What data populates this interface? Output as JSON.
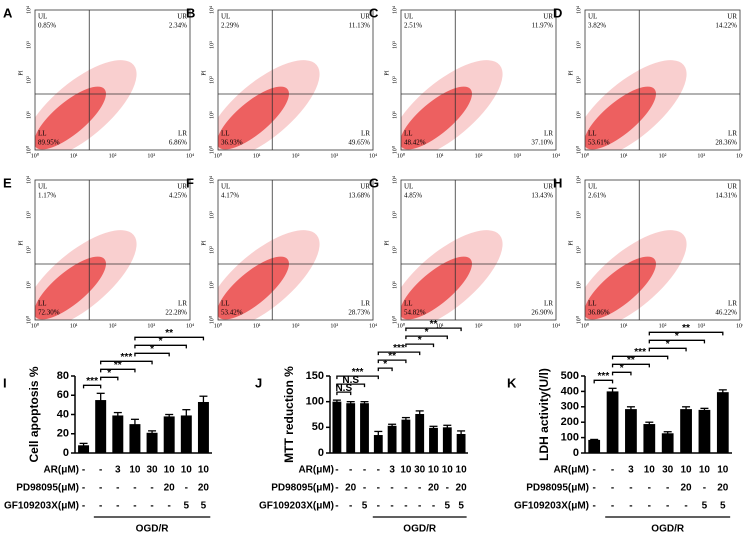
{
  "cytometry": {
    "y_label": "PI",
    "ticks": [
      "10⁰",
      "10¹",
      "10²",
      "10³",
      "10⁴"
    ],
    "quadrant_names": [
      "UL",
      "UR",
      "LL",
      "LR"
    ],
    "panels": [
      {
        "letter": "A",
        "quadrants": [
          "0.85%",
          "2.34%",
          "89.95%",
          "6.86%"
        ]
      },
      {
        "letter": "B",
        "quadrants": [
          "2.29%",
          "11.13%",
          "36.93%",
          "49.65%"
        ]
      },
      {
        "letter": "C",
        "quadrants": [
          "2.51%",
          "11.97%",
          "48.42%",
          "37.10%"
        ]
      },
      {
        "letter": "D",
        "quadrants": [
          "3.82%",
          "14.22%",
          "53.61%",
          "28.36%"
        ]
      },
      {
        "letter": "E",
        "quadrants": [
          "1.17%",
          "4.25%",
          "72.30%",
          "22.28%"
        ]
      },
      {
        "letter": "F",
        "quadrants": [
          "4.17%",
          "13.68%",
          "53.42%",
          "28.73%"
        ]
      },
      {
        "letter": "G",
        "quadrants": [
          "4.85%",
          "13.43%",
          "54.82%",
          "26.90%"
        ]
      },
      {
        "letter": "H",
        "quadrants": [
          "2.61%",
          "14.31%",
          "36.86%",
          "46.22%"
        ]
      }
    ]
  },
  "chart_data": [
    {
      "type": "bar",
      "letter": "I",
      "y_label": "Cell apoptosis %",
      "color": "#000000",
      "values": [
        8,
        55,
        39,
        30,
        21,
        38,
        39,
        53
      ],
      "errors": [
        2,
        7,
        3,
        5,
        2,
        2,
        6,
        6
      ],
      "ylim": [
        0,
        80
      ],
      "yticks": [
        0,
        20,
        40,
        60,
        80
      ],
      "conditions": [
        {
          "label": "AR(μM)",
          "cells": [
            "-",
            "-",
            "3",
            "10",
            "30",
            "10",
            "10",
            "10"
          ]
        },
        {
          "label": "PD98095(μM)",
          "cells": [
            "-",
            "-",
            "-",
            "-",
            "-",
            "20",
            "-",
            "20"
          ]
        },
        {
          "label": "GF109203X(μM)",
          "cells": [
            "-",
            "-",
            "-",
            "-",
            "-",
            "-",
            "5",
            "5"
          ]
        }
      ],
      "group": {
        "label": "OGD/R",
        "from": 1,
        "to": 7
      },
      "annotations": [
        {
          "text": "***",
          "from": 0,
          "to": 1
        },
        {
          "text": "*",
          "from": 1,
          "to": 2
        },
        {
          "text": "**",
          "from": 1,
          "to": 3
        },
        {
          "text": "***",
          "from": 1,
          "to": 4
        },
        {
          "text": "*",
          "from": 3,
          "to": 5
        },
        {
          "text": "*",
          "from": 3,
          "to": 6
        },
        {
          "text": "**",
          "from": 3,
          "to": 7
        }
      ]
    },
    {
      "type": "bar",
      "letter": "J",
      "y_label": "MTT reduction %",
      "color": "#000000",
      "values": [
        100,
        97,
        97,
        35,
        53,
        65,
        76,
        49,
        50,
        37
      ],
      "errors": [
        3,
        3,
        3,
        7,
        3,
        4,
        6,
        3,
        4,
        6
      ],
      "ylim": [
        0,
        150
      ],
      "yticks": [
        0,
        50,
        100,
        150
      ],
      "conditions": [
        {
          "label": "AR(μM)",
          "cells": [
            "-",
            "-",
            "-",
            "-",
            "3",
            "10",
            "30",
            "10",
            "10",
            "10"
          ]
        },
        {
          "label": "PD98095(μM)",
          "cells": [
            "-",
            "20",
            "-",
            "-",
            "-",
            "-",
            "-",
            "20",
            "-",
            "20"
          ]
        },
        {
          "label": "GF109203X(μM)",
          "cells": [
            "-",
            "-",
            "5",
            "-",
            "-",
            "-",
            "-",
            "-",
            "5",
            "5"
          ]
        }
      ],
      "group": {
        "label": "OGD/R",
        "from": 3,
        "to": 9
      },
      "annotations": [
        {
          "text": "N.S",
          "from": 0,
          "to": 1
        },
        {
          "text": "N.S",
          "from": 0,
          "to": 2
        },
        {
          "text": "***",
          "from": 0,
          "to": 3
        },
        {
          "text": "*",
          "from": 3,
          "to": 4
        },
        {
          "text": "**",
          "from": 3,
          "to": 5
        },
        {
          "text": "***",
          "from": 3,
          "to": 6
        },
        {
          "text": "*",
          "from": 5,
          "to": 7
        },
        {
          "text": "*",
          "from": 5,
          "to": 8
        },
        {
          "text": "**",
          "from": 5,
          "to": 9
        }
      ]
    },
    {
      "type": "bar",
      "letter": "K",
      "y_label": "LDH activity(U/l)",
      "color": "#000000",
      "values": [
        85,
        400,
        285,
        188,
        128,
        285,
        280,
        395
      ],
      "errors": [
        3,
        20,
        15,
        12,
        10,
        15,
        10,
        15
      ],
      "ylim": [
        0,
        500
      ],
      "yticks": [
        0,
        100,
        200,
        300,
        400,
        500
      ],
      "conditions": [
        {
          "label": "AR(μM)",
          "cells": [
            "-",
            "-",
            "3",
            "10",
            "30",
            "10",
            "10",
            "10"
          ]
        },
        {
          "label": "PD98095(μM)",
          "cells": [
            "-",
            "-",
            "-",
            "-",
            "-",
            "20",
            "-",
            "20"
          ]
        },
        {
          "label": "GF109203X(μM)",
          "cells": [
            "-",
            "-",
            "-",
            "-",
            "-",
            "-",
            "5",
            "5"
          ]
        }
      ],
      "group": {
        "label": "OGD/R",
        "from": 1,
        "to": 7
      },
      "annotations": [
        {
          "text": "***",
          "from": 0,
          "to": 1
        },
        {
          "text": "*",
          "from": 1,
          "to": 2
        },
        {
          "text": "**",
          "from": 1,
          "to": 3
        },
        {
          "text": "***",
          "from": 1,
          "to": 4
        },
        {
          "text": "*",
          "from": 3,
          "to": 5
        },
        {
          "text": "*",
          "from": 3,
          "to": 6
        },
        {
          "text": "**",
          "from": 3,
          "to": 7
        }
      ]
    }
  ]
}
